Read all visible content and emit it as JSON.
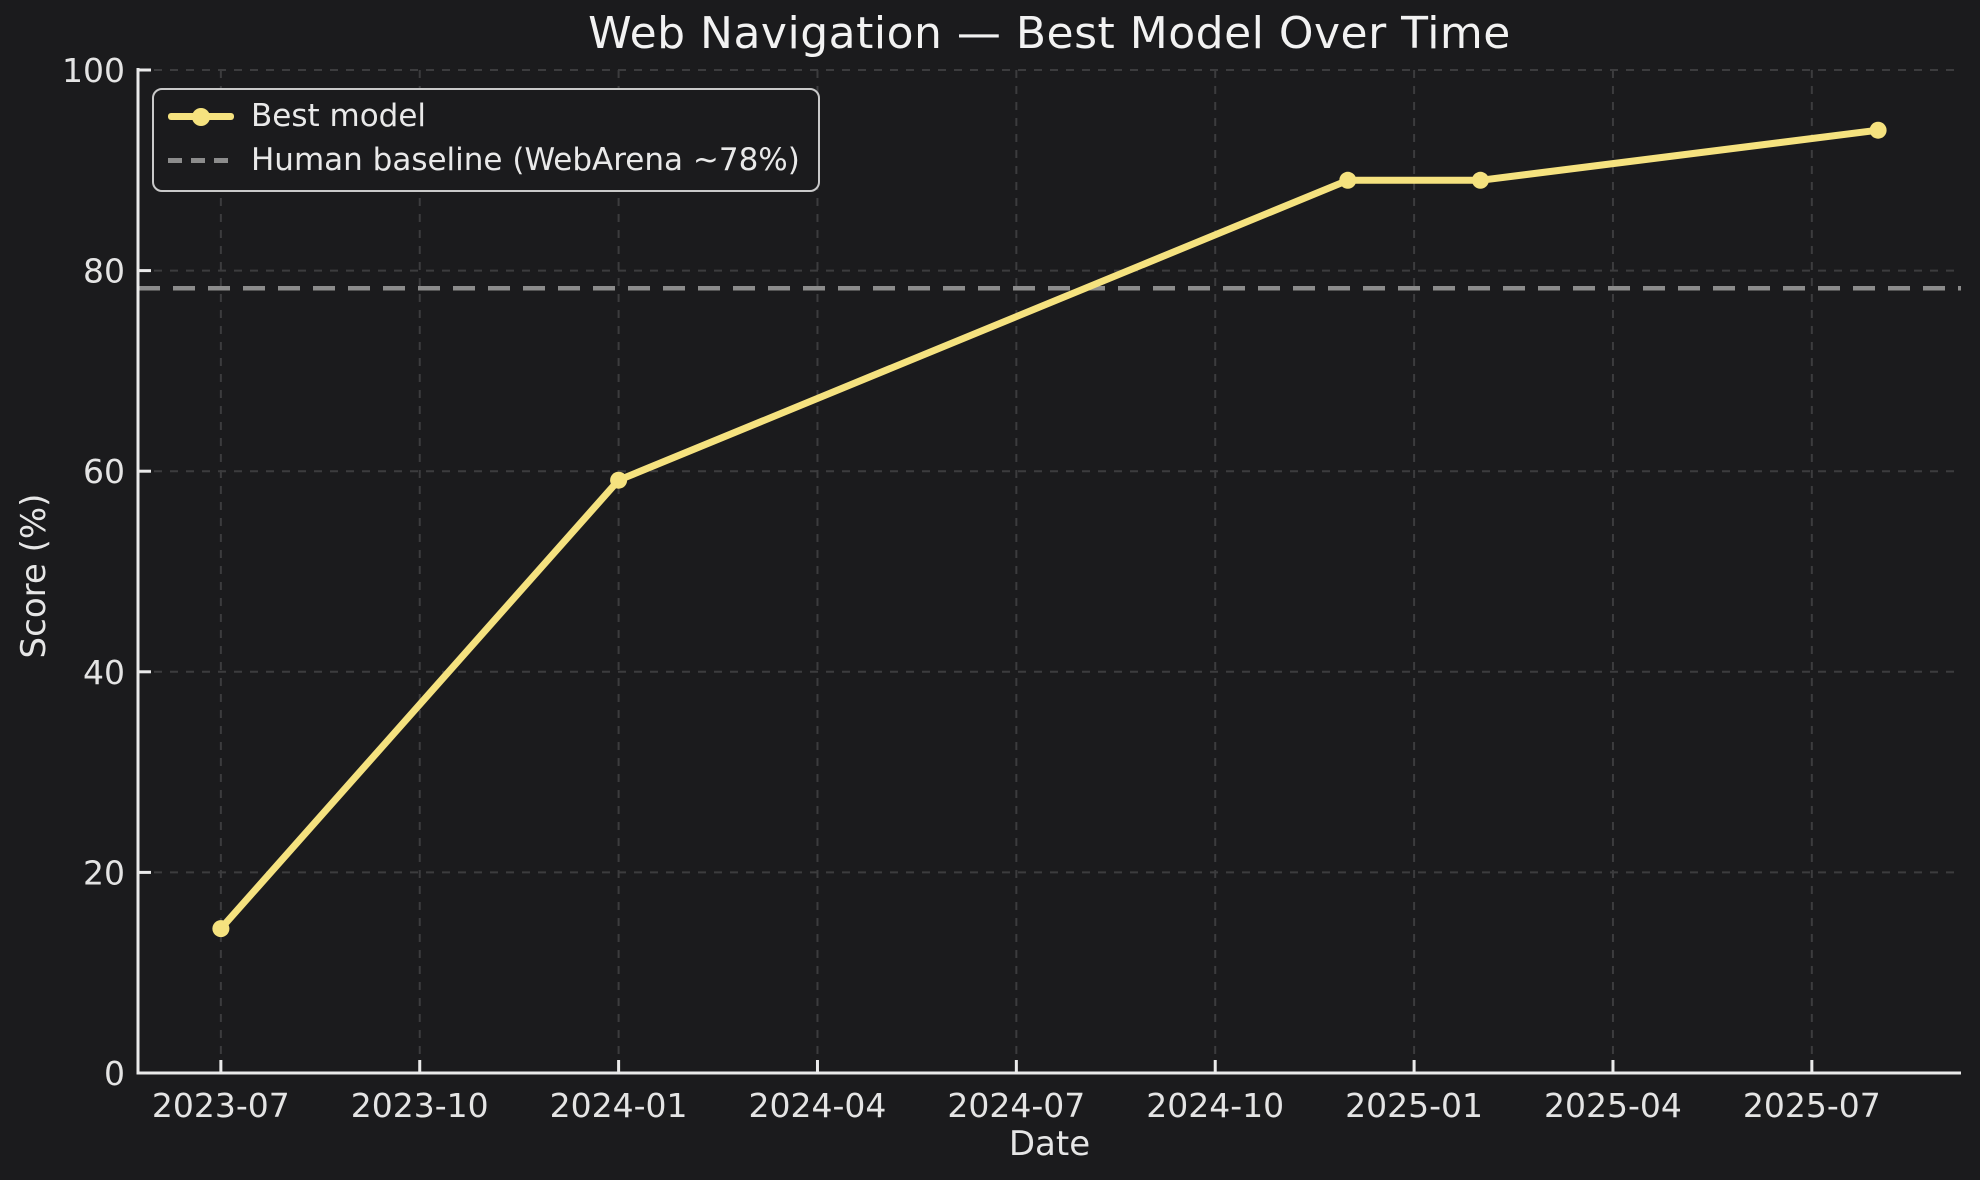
{
  "figure": {
    "title": "Web Navigation — Best Model Over Time",
    "xlabel": "Date",
    "ylabel": "Score (%)"
  },
  "legend": {
    "position": "upper-left",
    "items": [
      {
        "label": "Best model",
        "sample": "line-with-marker",
        "color": "#f5e27f"
      },
      {
        "label": "Human baseline (WebArena ~78%)",
        "sample": "dashed-line",
        "color": "#8c8c8c"
      }
    ]
  },
  "chart_data": {
    "type": "line",
    "title": "Web Navigation — Best Model Over Time",
    "xlabel": "Date",
    "ylabel": "Score (%)",
    "series": [
      {
        "name": "Best model",
        "color": "#f5e27f",
        "marker": "circle",
        "points": [
          {
            "date": "2023-07",
            "value": 14.4
          },
          {
            "date": "2024-01",
            "value": 59.1
          },
          {
            "date": "2024-12",
            "value": 89.0
          },
          {
            "date": "2025-02",
            "value": 89.0
          },
          {
            "date": "2025-08",
            "value": 94.0
          }
        ]
      }
    ],
    "baseline": {
      "label": "Human baseline (WebArena ~78%)",
      "value": 78.24,
      "color": "#8c8c8c",
      "style": "dashed"
    },
    "x_tick_labels": [
      "2023-07",
      "2023-10",
      "2024-01",
      "2024-04",
      "2024-07",
      "2024-10",
      "2025-01",
      "2025-04",
      "2025-07"
    ],
    "y_ticks": [
      0,
      20,
      40,
      60,
      80,
      100
    ],
    "ylim": [
      0,
      100
    ],
    "x_origin_month": "2023-07",
    "xlim_months_from_origin": [
      -1.25,
      26.25
    ],
    "grid": true,
    "grid_style": "dashed",
    "legend_position": "upper left",
    "colors": {
      "background": "#1b1b1d",
      "line": "#f5e27f",
      "baseline": "#8c8c8c",
      "grid": "#3c3c3e",
      "spine": "#eaeaea",
      "tick_text": "#e4e4e4",
      "title_text": "#f2f2f2"
    }
  }
}
